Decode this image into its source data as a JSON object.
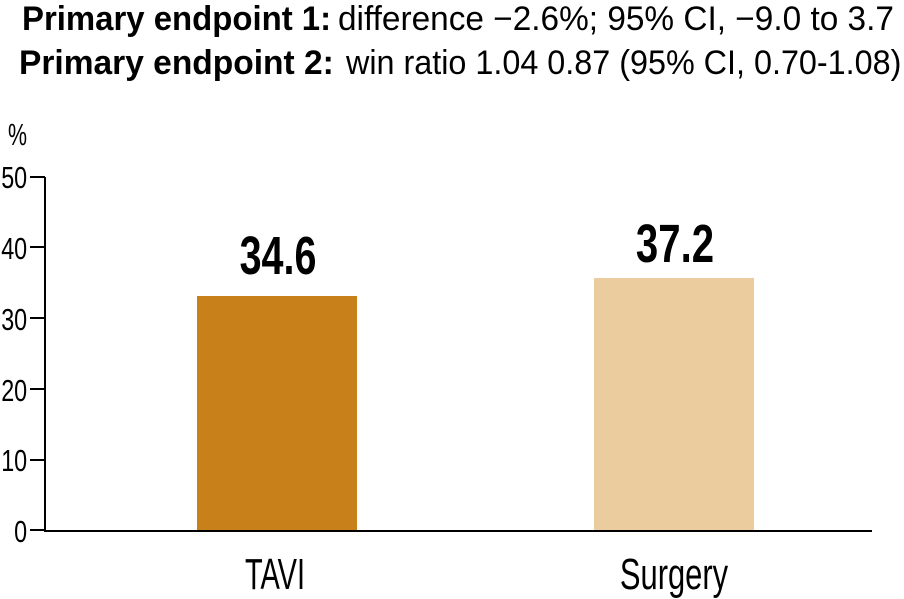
{
  "figure": {
    "annotations": {
      "line1_label": "Primary endpoint 1:",
      "line1_text": "difference −2.6%; 95% CI, −9.0 to 3.7",
      "line2_label": "Primary endpoint 2:",
      "line2_text": "win ratio 1.04 0.87 (95% CI, 0.70-1.08)"
    },
    "colors": {
      "tavi_bar": "#c8811a",
      "surgery_bar": "#eacc9f",
      "text": "#000000",
      "axis": "#000000"
    }
  },
  "chart_data": {
    "type": "bar",
    "categories": [
      "TAVI",
      "Surgery"
    ],
    "values": [
      34.6,
      37.2
    ],
    "value_labels": [
      "34.6",
      "37.2"
    ],
    "bar_colors": [
      "#c8811a",
      "#eacc9f"
    ],
    "title": "",
    "xlabel": "",
    "ylabel": "%",
    "ylim": [
      0,
      50
    ],
    "yticks": [
      0,
      10,
      20,
      30,
      40,
      50
    ],
    "grid": false,
    "legend": false,
    "annotations": [
      "Primary endpoint 1: difference −2.6%; 95% CI, −9.0 to 3.7",
      "Primary endpoint 2: win ratio 1.04 0.87 (95% CI, 0.70-1.08)"
    ]
  }
}
